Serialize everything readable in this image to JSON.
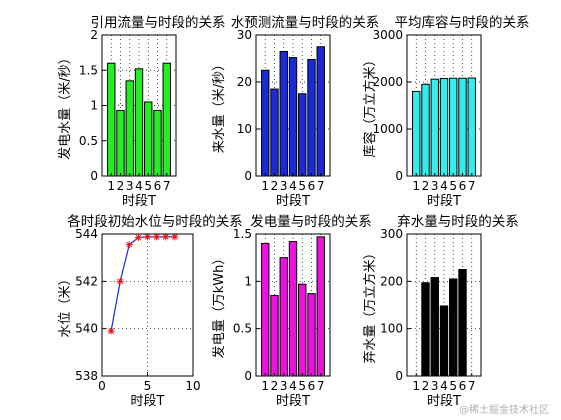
{
  "chart_data": [
    {
      "type": "bar",
      "title": "引用流量与时段的关系",
      "xlabel": "时段T",
      "ylabel": "发电水量（米/秒）",
      "categories": [
        "1",
        "2",
        "3",
        "4",
        "5",
        "6",
        "7"
      ],
      "values": [
        1.6,
        0.93,
        1.35,
        1.52,
        1.05,
        0.93,
        1.6
      ],
      "ylim": [
        0,
        2
      ],
      "yticks": [
        "0",
        "0.5",
        "1",
        "1.5",
        "2"
      ],
      "grid": true,
      "color": "#22ee22"
    },
    {
      "type": "bar",
      "title": "水预测流量与时段的关系",
      "xlabel": "时段T",
      "ylabel": "来水量（米/秒）",
      "categories": [
        "1",
        "2",
        "3",
        "4",
        "5",
        "6",
        "7"
      ],
      "values": [
        22.5,
        18.5,
        26.5,
        25.2,
        17.5,
        24.8,
        27.5
      ],
      "ylim": [
        0,
        30
      ],
      "yticks": [
        "0",
        "10",
        "20",
        "30"
      ],
      "grid": true,
      "color": "#1a2ad6"
    },
    {
      "type": "bar",
      "title": "平均库容与时段的关系",
      "xlabel": "时段T",
      "ylabel": "库容（万立方米）",
      "categories": [
        "1",
        "2",
        "3",
        "4",
        "5",
        "6",
        "7"
      ],
      "values": [
        1800,
        1950,
        2060,
        2075,
        2080,
        2080,
        2085
      ],
      "ylim": [
        0,
        3000
      ],
      "yticks": [
        "0",
        "1000",
        "2000",
        "3000"
      ],
      "grid": true,
      "color": "#33eeee"
    },
    {
      "type": "line",
      "title": "各时段初始水位与时段的关系",
      "xlabel": "时段T",
      "ylabel": "水位（米）",
      "x": [
        1,
        2,
        3,
        4,
        5,
        6,
        7,
        8
      ],
      "y": [
        539.9,
        542.0,
        543.55,
        543.85,
        543.88,
        543.88,
        543.88,
        543.88
      ],
      "xlim": [
        0,
        10
      ],
      "ylim": [
        538,
        544
      ],
      "xticks": [
        "0",
        "5",
        "10"
      ],
      "yticks": [
        "538",
        "540",
        "542",
        "544"
      ],
      "grid": true,
      "color": "#1a2ad6",
      "marker_color": "#ee1111"
    },
    {
      "type": "bar",
      "title": "发电量与时段的关系",
      "xlabel": "时段T",
      "ylabel": "发电量（万kWh）",
      "categories": [
        "1",
        "2",
        "3",
        "4",
        "5",
        "6",
        "7"
      ],
      "values": [
        1.4,
        0.85,
        1.25,
        1.42,
        0.97,
        0.87,
        1.47
      ],
      "ylim": [
        0,
        1.5
      ],
      "yticks": [
        "0",
        "0.5",
        "1",
        "1.5"
      ],
      "grid": true,
      "color": "#ee11dd"
    },
    {
      "type": "bar",
      "title": "弃水量与时段的关系",
      "xlabel": "时段T",
      "ylabel": "弃水量（万立方米）",
      "categories": [
        "1",
        "2",
        "3",
        "4",
        "5",
        "6",
        "7"
      ],
      "values": [
        0,
        197,
        208,
        148,
        205,
        225,
        0
      ],
      "ylim": [
        0,
        300
      ],
      "yticks": [
        "0",
        "100",
        "200",
        "300"
      ],
      "grid": true,
      "color": "#000000"
    }
  ],
  "watermark": "@稀土掘金技术社区"
}
